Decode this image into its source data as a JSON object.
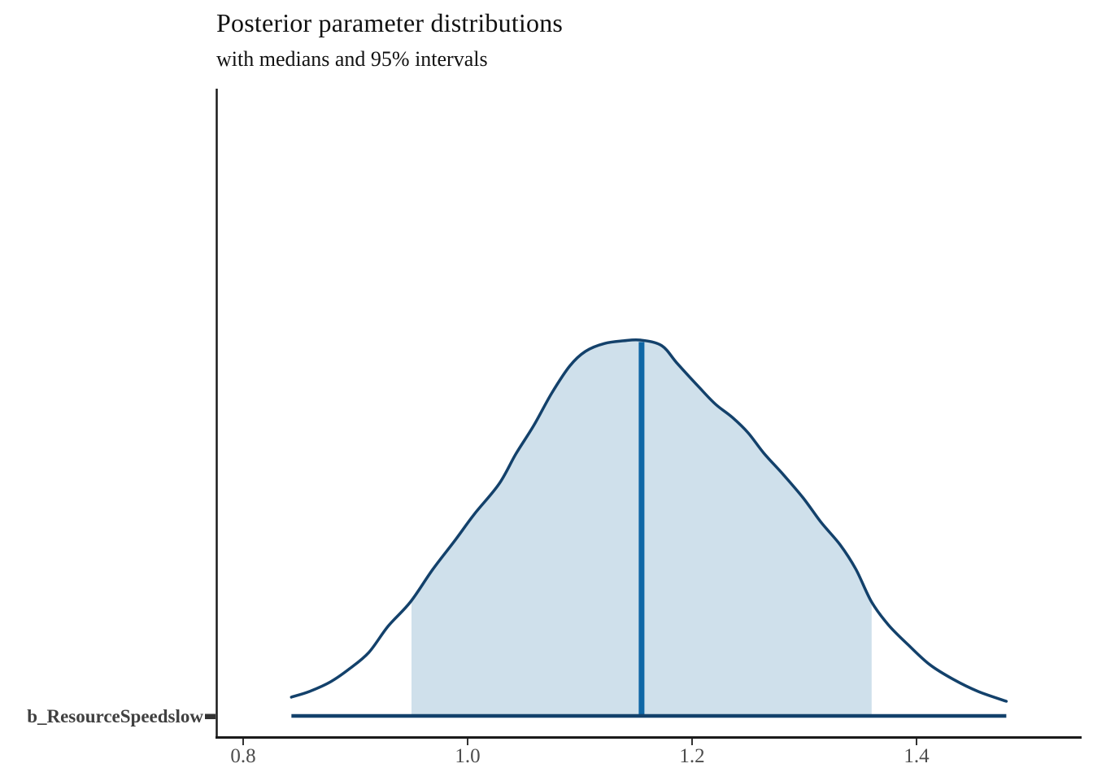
{
  "chart_data": {
    "type": "area",
    "title": "Posterior parameter distributions",
    "subtitle": "with medians and 95% intervals",
    "parameter": "b_ResourceSpeedslow",
    "interval_level": "95%",
    "median": 1.155,
    "interval": [
      0.95,
      1.36
    ],
    "xticks": [
      "0.8",
      "1.0",
      "1.2",
      "1.4"
    ],
    "xtick_values": [
      0.8,
      1.0,
      1.2,
      1.4
    ],
    "xlim": [
      0.775,
      1.55
    ],
    "grid": "off",
    "legend": "none",
    "density": {
      "x": [
        0.843,
        0.859,
        0.878,
        0.895,
        0.912,
        0.929,
        0.949,
        0.969,
        0.989,
        1.006,
        1.028,
        1.043,
        1.059,
        1.075,
        1.091,
        1.105,
        1.122,
        1.139,
        1.154,
        1.173,
        1.187,
        1.207,
        1.221,
        1.236,
        1.25,
        1.264,
        1.281,
        1.299,
        1.315,
        1.332,
        1.346,
        1.36,
        1.375,
        1.393,
        1.412,
        1.433,
        1.455,
        1.48
      ],
      "y": [
        0.05,
        0.065,
        0.091,
        0.126,
        0.169,
        0.238,
        0.303,
        0.39,
        0.468,
        0.537,
        0.617,
        0.697,
        0.773,
        0.859,
        0.931,
        0.97,
        0.991,
        0.998,
        1.0,
        0.985,
        0.937,
        0.872,
        0.829,
        0.794,
        0.753,
        0.699,
        0.643,
        0.58,
        0.515,
        0.455,
        0.39,
        0.303,
        0.242,
        0.188,
        0.136,
        0.097,
        0.065,
        0.039
      ]
    },
    "colors": {
      "curve_outline": "#13416b",
      "interval_fill": "#cfe0eb",
      "median_line": "#0f67a6",
      "axis_line": "#1a1a1a",
      "tick_mark": "#333333",
      "tick_label": "#4d4d4d",
      "y_label": "#404040"
    }
  }
}
